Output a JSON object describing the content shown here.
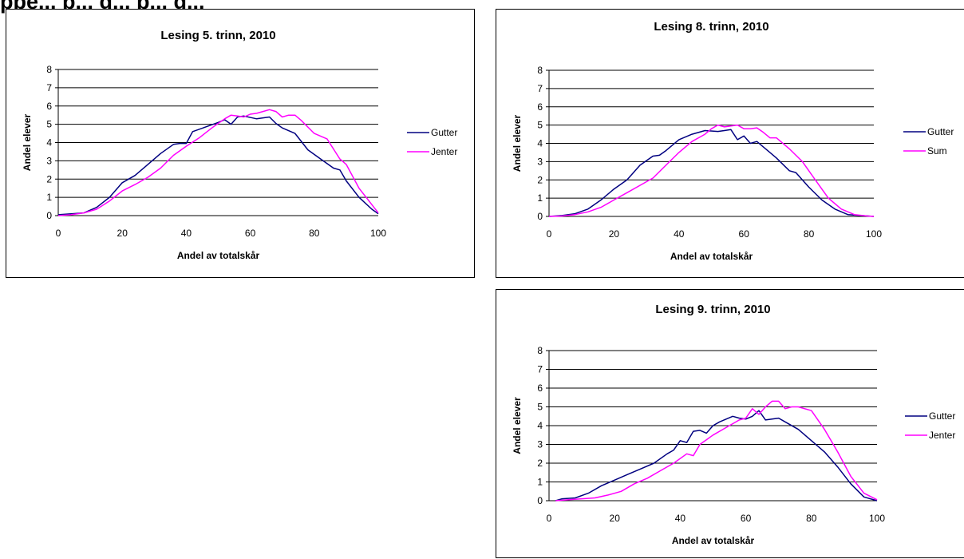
{
  "heading": "ppe... p... g... p... g...",
  "chart_data": [
    {
      "type": "line",
      "title": "Lesing 5. trinn, 2010",
      "xlabel": "Andel av totalskår",
      "ylabel": "Andel elever",
      "xlim": [
        0,
        100
      ],
      "ylim": [
        0,
        8
      ],
      "xticks": [
        0,
        20,
        40,
        60,
        80,
        100
      ],
      "yticks": [
        0,
        1,
        2,
        3,
        4,
        5,
        6,
        7,
        8
      ],
      "grid": "horizontal",
      "legend": "right",
      "series": [
        {
          "name": "Gutter",
          "color": "#000080",
          "x": [
            0,
            4,
            8,
            12,
            16,
            20,
            24,
            28,
            32,
            36,
            38,
            40,
            42,
            46,
            50,
            52,
            54,
            56,
            58,
            62,
            66,
            68,
            70,
            74,
            78,
            82,
            86,
            88,
            90,
            94,
            98,
            100
          ],
          "y": [
            0.05,
            0.1,
            0.15,
            0.45,
            1.0,
            1.8,
            2.2,
            2.8,
            3.4,
            3.9,
            3.95,
            3.95,
            4.6,
            4.85,
            5.1,
            5.25,
            5.0,
            5.4,
            5.45,
            5.3,
            5.4,
            5.05,
            4.8,
            4.5,
            3.6,
            3.1,
            2.6,
            2.5,
            1.9,
            1.0,
            0.35,
            0.1
          ]
        },
        {
          "name": "Jenter",
          "color": "#ff00ff",
          "x": [
            0,
            4,
            8,
            12,
            16,
            20,
            24,
            28,
            32,
            36,
            40,
            44,
            48,
            52,
            54,
            56,
            58,
            60,
            62,
            64,
            66,
            68,
            70,
            72,
            74,
            76,
            80,
            84,
            88,
            90,
            94,
            98,
            100
          ],
          "y": [
            0.0,
            0.05,
            0.15,
            0.35,
            0.8,
            1.35,
            1.7,
            2.1,
            2.6,
            3.3,
            3.8,
            4.25,
            4.8,
            5.3,
            5.5,
            5.45,
            5.4,
            5.55,
            5.6,
            5.7,
            5.8,
            5.7,
            5.4,
            5.5,
            5.5,
            5.2,
            4.5,
            4.2,
            3.1,
            2.8,
            1.5,
            0.6,
            0.15
          ]
        }
      ]
    },
    {
      "type": "line",
      "title": "Lesing 8. trinn, 2010",
      "xlabel": "Andel av totalskår",
      "ylabel": "Andel elever",
      "xlim": [
        0,
        100
      ],
      "ylim": [
        0,
        8
      ],
      "xticks": [
        0,
        20,
        40,
        60,
        80,
        100
      ],
      "yticks": [
        0,
        1,
        2,
        3,
        4,
        5,
        6,
        7,
        8
      ],
      "grid": "horizontal",
      "legend": "right",
      "series": [
        {
          "name": "Gutter",
          "color": "#000080",
          "x": [
            0,
            4,
            8,
            12,
            16,
            20,
            24,
            28,
            32,
            34,
            36,
            40,
            44,
            48,
            52,
            54,
            56,
            58,
            60,
            62,
            64,
            66,
            68,
            70,
            74,
            76,
            80,
            84,
            88,
            92,
            96,
            100
          ],
          "y": [
            0.0,
            0.05,
            0.15,
            0.4,
            0.9,
            1.5,
            2.0,
            2.8,
            3.3,
            3.35,
            3.6,
            4.2,
            4.5,
            4.7,
            4.65,
            4.7,
            4.75,
            4.2,
            4.4,
            4.0,
            4.1,
            3.8,
            3.5,
            3.2,
            2.5,
            2.4,
            1.6,
            0.9,
            0.4,
            0.1,
            0.05,
            0.0
          ]
        },
        {
          "name": "Sum",
          "color": "#ff00ff",
          "x": [
            0,
            4,
            8,
            12,
            16,
            20,
            24,
            28,
            32,
            36,
            40,
            44,
            48,
            50,
            52,
            54,
            56,
            58,
            60,
            62,
            64,
            66,
            68,
            70,
            74,
            78,
            82,
            86,
            90,
            94,
            98,
            100
          ],
          "y": [
            0.0,
            0.02,
            0.1,
            0.25,
            0.5,
            0.9,
            1.3,
            1.7,
            2.1,
            2.8,
            3.5,
            4.1,
            4.5,
            4.8,
            5.0,
            4.9,
            4.95,
            5.0,
            4.8,
            4.8,
            4.85,
            4.6,
            4.3,
            4.3,
            3.7,
            3.0,
            2.0,
            1.0,
            0.4,
            0.1,
            0.02,
            0.0
          ]
        }
      ]
    },
    {
      "type": "line",
      "title": "Lesing 9. trinn, 2010",
      "xlabel": "Andel av totalskår",
      "ylabel": "Andel elever",
      "xlim": [
        0,
        100
      ],
      "ylim": [
        0,
        8
      ],
      "xticks": [
        0,
        20,
        40,
        60,
        80,
        100
      ],
      "yticks": [
        0,
        1,
        2,
        3,
        4,
        5,
        6,
        7,
        8
      ],
      "grid": "horizontal",
      "legend": "right",
      "series": [
        {
          "name": "Gutter",
          "color": "#000080",
          "x": [
            2,
            4,
            8,
            12,
            16,
            20,
            24,
            28,
            32,
            36,
            38,
            40,
            42,
            44,
            46,
            48,
            50,
            52,
            56,
            58,
            60,
            62,
            64,
            66,
            68,
            70,
            72,
            76,
            80,
            84,
            88,
            92,
            96,
            100
          ],
          "y": [
            0.0,
            0.1,
            0.15,
            0.4,
            0.8,
            1.1,
            1.4,
            1.7,
            2.0,
            2.5,
            2.7,
            3.2,
            3.1,
            3.7,
            3.75,
            3.6,
            4.0,
            4.2,
            4.5,
            4.4,
            4.35,
            4.5,
            4.8,
            4.3,
            4.35,
            4.4,
            4.2,
            3.8,
            3.2,
            2.6,
            1.8,
            0.9,
            0.2,
            0.0
          ]
        },
        {
          "name": "Jenter",
          "color": "#ff00ff",
          "x": [
            2,
            6,
            10,
            14,
            18,
            22,
            26,
            30,
            34,
            38,
            42,
            44,
            46,
            50,
            54,
            58,
            60,
            62,
            64,
            66,
            68,
            70,
            72,
            74,
            76,
            80,
            84,
            88,
            92,
            96,
            100
          ],
          "y": [
            0.0,
            0.05,
            0.1,
            0.15,
            0.3,
            0.5,
            0.9,
            1.2,
            1.6,
            2.0,
            2.5,
            2.4,
            3.0,
            3.5,
            3.9,
            4.3,
            4.4,
            4.9,
            4.6,
            5.0,
            5.3,
            5.3,
            4.9,
            5.0,
            5.0,
            4.8,
            3.8,
            2.6,
            1.3,
            0.4,
            0.05
          ]
        }
      ]
    }
  ]
}
